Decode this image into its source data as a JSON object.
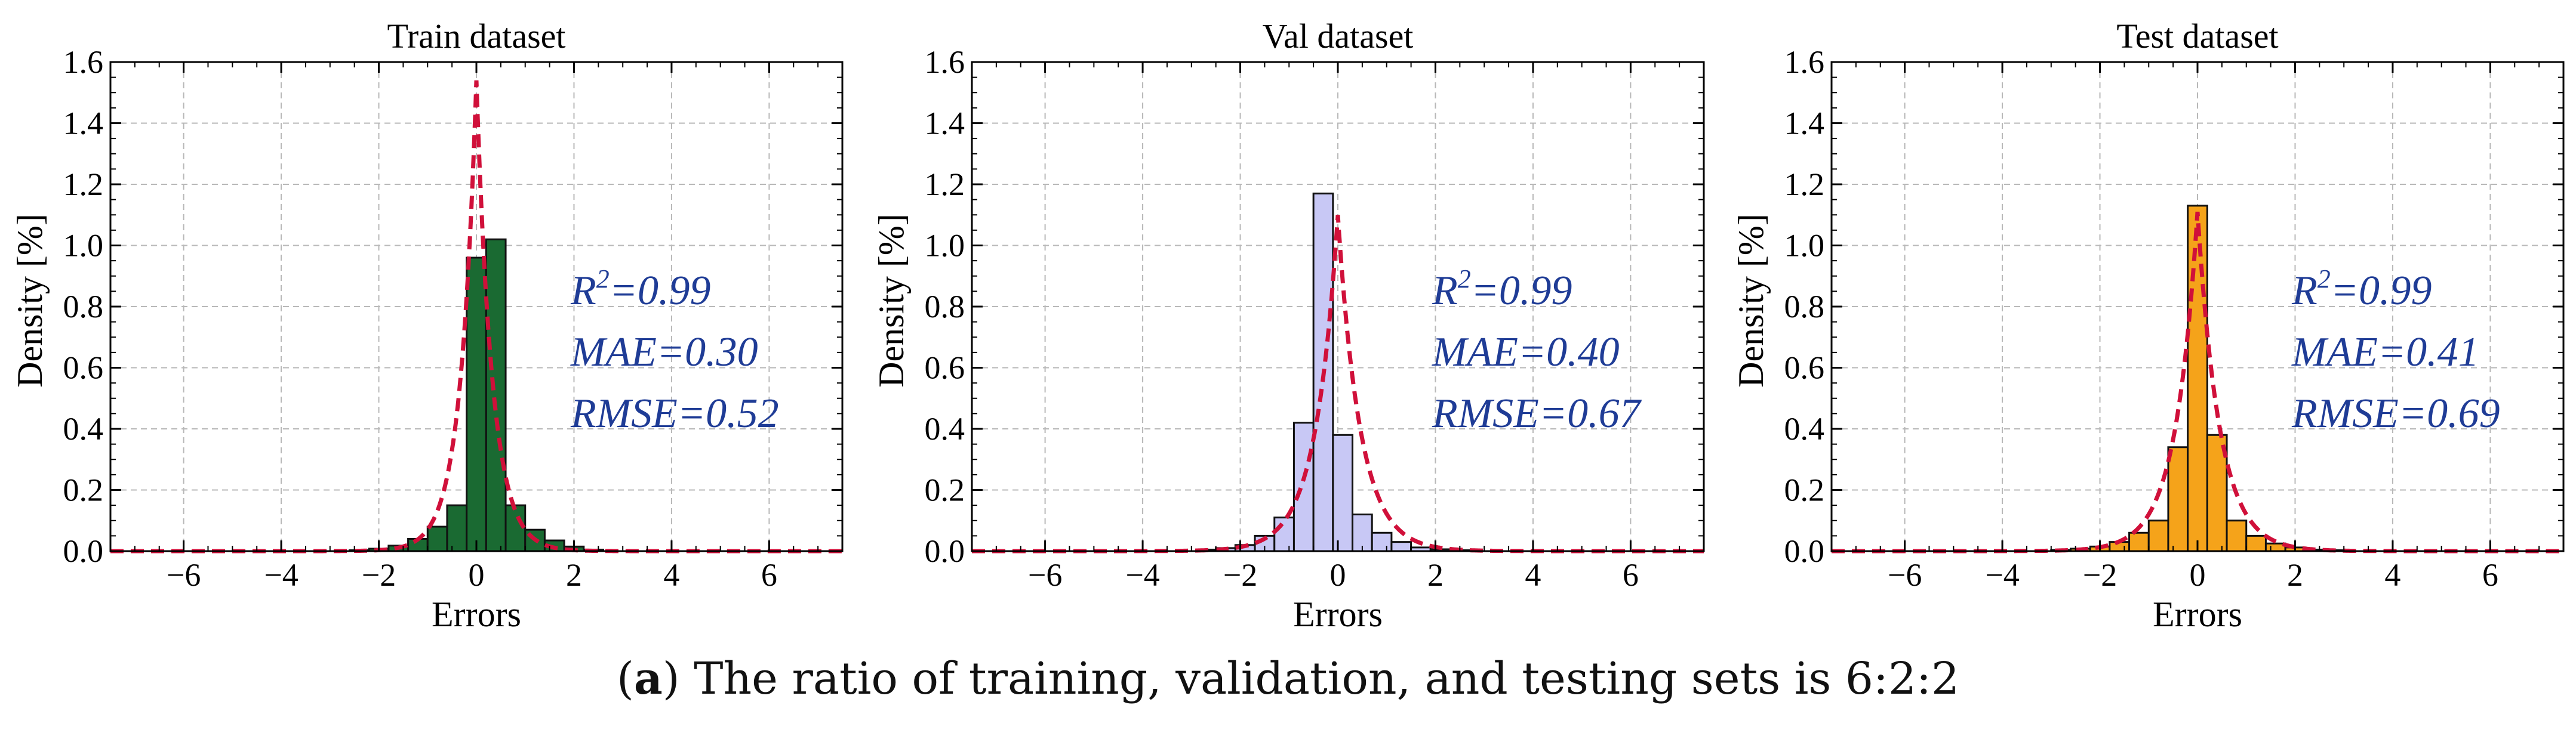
{
  "figure": {
    "caption_prefix": "(",
    "caption_label": "a",
    "caption_text": ") The ratio of training, validation, and testing sets is 6:2:2"
  },
  "chart_data": [
    {
      "type": "bar",
      "title": "Train dataset",
      "xlabel": "Errors",
      "ylabel": "Density [%]",
      "xlim": [
        -7.5,
        7.5
      ],
      "ylim": [
        0,
        1.6
      ],
      "xticks": [
        -6,
        -4,
        -2,
        0,
        2,
        4,
        6
      ],
      "yticks": [
        0.0,
        0.2,
        0.4,
        0.6,
        0.8,
        1.0,
        1.2,
        1.4,
        1.6
      ],
      "grid": true,
      "bar_color": "#1a6a32",
      "curve_color": "#d0103a",
      "bin_edges": [
        -2.6,
        -2.2,
        -1.8,
        -1.4,
        -1.0,
        -0.6,
        -0.2,
        0.2,
        0.6,
        1.0,
        1.4,
        1.8,
        2.2,
        2.6
      ],
      "values": [
        0.003,
        0.008,
        0.018,
        0.04,
        0.08,
        0.15,
        0.96,
        1.02,
        0.15,
        0.07,
        0.035,
        0.015,
        0.005
      ],
      "curve": {
        "type": "laplace",
        "peak": 1.54,
        "scale": 0.325
      },
      "annotations": {
        "r2": "0.99",
        "mae": "MAE=0.30",
        "rmse": "RMSE=0.52"
      }
    },
    {
      "type": "bar",
      "title": "Val dataset",
      "xlabel": "Errors",
      "ylabel": "Density [%]",
      "xlim": [
        -7.5,
        7.5
      ],
      "ylim": [
        0,
        1.6
      ],
      "xticks": [
        -6,
        -4,
        -2,
        0,
        2,
        4,
        6
      ],
      "yticks": [
        0.0,
        0.2,
        0.4,
        0.6,
        0.8,
        1.0,
        1.2,
        1.4,
        1.6
      ],
      "grid": true,
      "bar_color": "#c8c8f5",
      "curve_color": "#d0103a",
      "bin_edges": [
        -2.9,
        -2.5,
        -2.1,
        -1.7,
        -1.3,
        -0.9,
        -0.5,
        -0.1,
        0.3,
        0.7,
        1.1,
        1.5,
        1.9,
        2.3,
        2.7
      ],
      "values": [
        0.005,
        0.01,
        0.02,
        0.05,
        0.11,
        0.42,
        1.17,
        0.38,
        0.12,
        0.06,
        0.03,
        0.012,
        0.006,
        0.003
      ],
      "curve": {
        "type": "laplace",
        "peak": 1.1,
        "scale": 0.455
      },
      "annotations": {
        "r2": "0.99",
        "mae": "MAE=0.40",
        "rmse": "RMSE=0.67"
      }
    },
    {
      "type": "bar",
      "title": "Test dataset",
      "xlabel": "Errors",
      "ylabel": "Density [%]",
      "xlim": [
        -7.5,
        7.5
      ],
      "ylim": [
        0,
        1.6
      ],
      "xticks": [
        -6,
        -4,
        -2,
        0,
        2,
        4,
        6
      ],
      "yticks": [
        0.0,
        0.2,
        0.4,
        0.6,
        0.8,
        1.0,
        1.2,
        1.4,
        1.6
      ],
      "grid": true,
      "bar_color": "#f5a31a",
      "curve_color": "#d0103a",
      "bin_edges": [
        -3.0,
        -2.6,
        -2.2,
        -1.8,
        -1.4,
        -1.0,
        -0.6,
        -0.2,
        0.2,
        0.6,
        1.0,
        1.4,
        1.8,
        2.2,
        2.6,
        3.0
      ],
      "values": [
        0.004,
        0.008,
        0.015,
        0.03,
        0.06,
        0.1,
        0.34,
        1.13,
        0.38,
        0.1,
        0.05,
        0.025,
        0.012,
        0.005,
        0.003
      ],
      "curve": {
        "type": "laplace",
        "peak": 1.11,
        "scale": 0.45
      },
      "annotations": {
        "r2": "0.99",
        "mae": "MAE=0.41",
        "rmse": "RMSE=0.69"
      }
    }
  ]
}
